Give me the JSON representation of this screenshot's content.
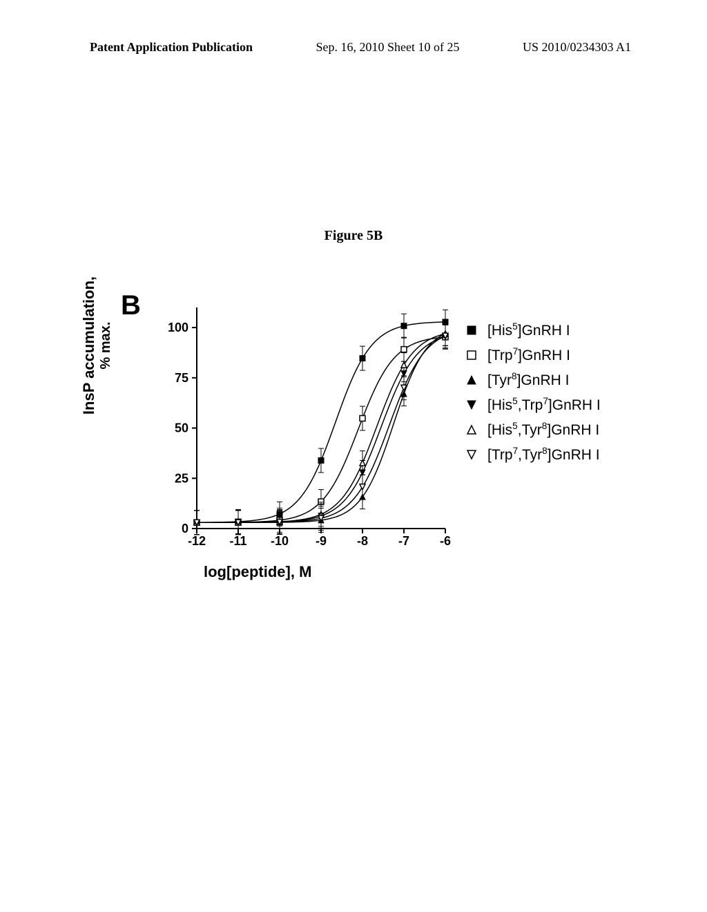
{
  "header": {
    "left": "Patent Application Publication",
    "middle": "Sep. 16, 2010  Sheet 10 of 25",
    "right": "US 2010/0234303 A1"
  },
  "figure_title": "Figure 5B",
  "panel_label": "B",
  "ylabel_line1": "InsP accumulation,",
  "ylabel_line2": "% max.",
  "xlabel": "log[peptide], M",
  "colors": {
    "background": "#ffffff",
    "axis": "#000000",
    "text": "#000000",
    "curve": "#000000"
  },
  "chart": {
    "type": "line",
    "xlim": [
      -12,
      -6
    ],
    "ylim": [
      0,
      110
    ],
    "xticks": [
      -12,
      -11,
      -10,
      -9,
      -8,
      -7,
      -6
    ],
    "yticks": [
      0,
      25,
      50,
      75,
      100
    ],
    "axis_stroke_width": 2,
    "tick_fontsize": 18,
    "legend_fontsize": 21,
    "curve_stroke_width": 1.5,
    "marker_size": 8,
    "error_cap_width": 8
  },
  "series": [
    {
      "name": "[His5]GnRH I",
      "label_parts": [
        "[His",
        "5",
        "]GnRH I"
      ],
      "marker": "square-filled",
      "logEC50": -8.65,
      "top": 103,
      "bottom": 3,
      "hill": 1.0,
      "err": 6
    },
    {
      "name": "[Trp7]GnRH I",
      "label_parts": [
        "[Trp",
        "7",
        "]GnRH I"
      ],
      "marker": "square-open",
      "logEC50": -8.1,
      "top": 96,
      "bottom": 3,
      "hill": 1.0,
      "err": 6
    },
    {
      "name": "[Tyr8]GnRH I",
      "label_parts": [
        "[Tyr",
        "8",
        "]GnRH I"
      ],
      "marker": "triangle-up-filled",
      "logEC50": -7.25,
      "top": 101,
      "bottom": 3,
      "hill": 1.1,
      "err": 6
    },
    {
      "name": "[His5,Trp7]GnRH I",
      "label_parts": [
        "[His",
        "5",
        ",Trp",
        "7",
        "]GnRH I"
      ],
      "marker": "triangle-down-filled",
      "logEC50": -7.55,
      "top": 98,
      "bottom": 3,
      "hill": 1.0,
      "err": 6
    },
    {
      "name": "[His5,Tyr8]GnRH I",
      "label_parts": [
        "[His",
        "5",
        ",Tyr",
        "8",
        "]GnRH I"
      ],
      "marker": "triangle-up-open",
      "logEC50": -7.65,
      "top": 99,
      "bottom": 3,
      "hill": 1.0,
      "err": 6
    },
    {
      "name": "[Trp7,Tyr8]GnRH I",
      "label_parts": [
        "[Trp",
        "7",
        ",Tyr",
        "8",
        "]GnRH I"
      ],
      "marker": "triangle-down-open",
      "logEC50": -7.35,
      "top": 100,
      "bottom": 3,
      "hill": 1.0,
      "err": 6
    }
  ]
}
